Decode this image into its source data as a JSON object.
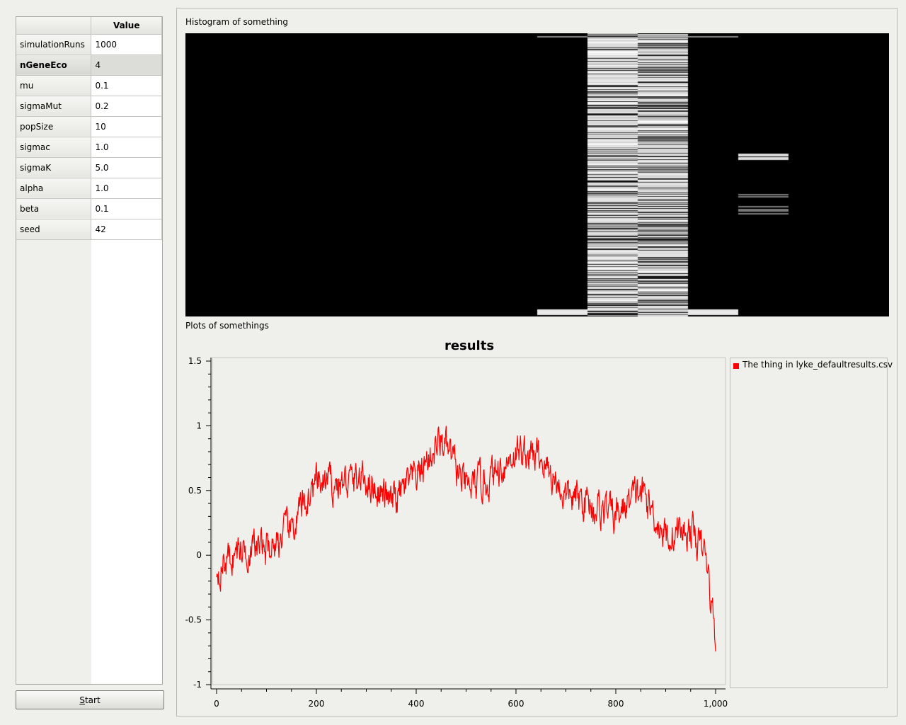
{
  "table": {
    "header_value": "Value",
    "rows": [
      {
        "name": "simulationRuns",
        "value": "1000"
      },
      {
        "name": "nGeneEco",
        "value": "4"
      },
      {
        "name": "mu",
        "value": "0.1"
      },
      {
        "name": "sigmaMut",
        "value": "0.2"
      },
      {
        "name": "popSize",
        "value": "10"
      },
      {
        "name": "sigmac",
        "value": "1.0"
      },
      {
        "name": "sigmaK",
        "value": "5.0"
      },
      {
        "name": "alpha",
        "value": "1.0"
      },
      {
        "name": "beta",
        "value": "0.1"
      },
      {
        "name": "seed",
        "value": "42"
      }
    ],
    "selected_row": "nGeneEco"
  },
  "start_button": {
    "label_mnemonic": "S",
    "label_rest": "tart"
  },
  "histogram": {
    "label": "Histogram of something",
    "columns": 14,
    "rows": 400,
    "column_fill_fraction": [
      0,
      0,
      0,
      0,
      0,
      0,
      0,
      0.04,
      0.78,
      0.72,
      0.04,
      0,
      0,
      0
    ]
  },
  "plots": {
    "label": "Plots of somethings"
  },
  "chart_data": {
    "type": "line",
    "title": "results",
    "xlabel": "",
    "ylabel": "",
    "xlim": [
      0,
      1000
    ],
    "ylim": [
      -1,
      1.5
    ],
    "x_ticks": [
      0,
      200,
      400,
      600,
      800,
      1000
    ],
    "x_tick_labels": [
      "0",
      "200",
      "400",
      "600",
      "800",
      "1,000"
    ],
    "y_ticks": [
      -1,
      -0.5,
      0,
      0.5,
      1,
      1.5
    ],
    "y_tick_labels": [
      "-1",
      "-0.5",
      "0",
      "0.5",
      "1",
      "1.5"
    ],
    "grid": false,
    "legend_position": "right",
    "series": [
      {
        "name": "The thing in lyke_defaultresults.csv",
        "color": "#ff0000",
        "x": [
          0,
          50,
          100,
          150,
          200,
          250,
          300,
          350,
          400,
          450,
          500,
          550,
          600,
          650,
          700,
          750,
          800,
          850,
          900,
          950,
          980,
          1000
        ],
        "y": [
          -0.1,
          0.05,
          0.05,
          0.2,
          0.55,
          0.55,
          0.6,
          0.4,
          0.6,
          0.9,
          0.5,
          0.6,
          0.8,
          0.75,
          0.45,
          0.4,
          0.3,
          0.5,
          0.15,
          0.2,
          0,
          -0.65
        ]
      }
    ]
  }
}
